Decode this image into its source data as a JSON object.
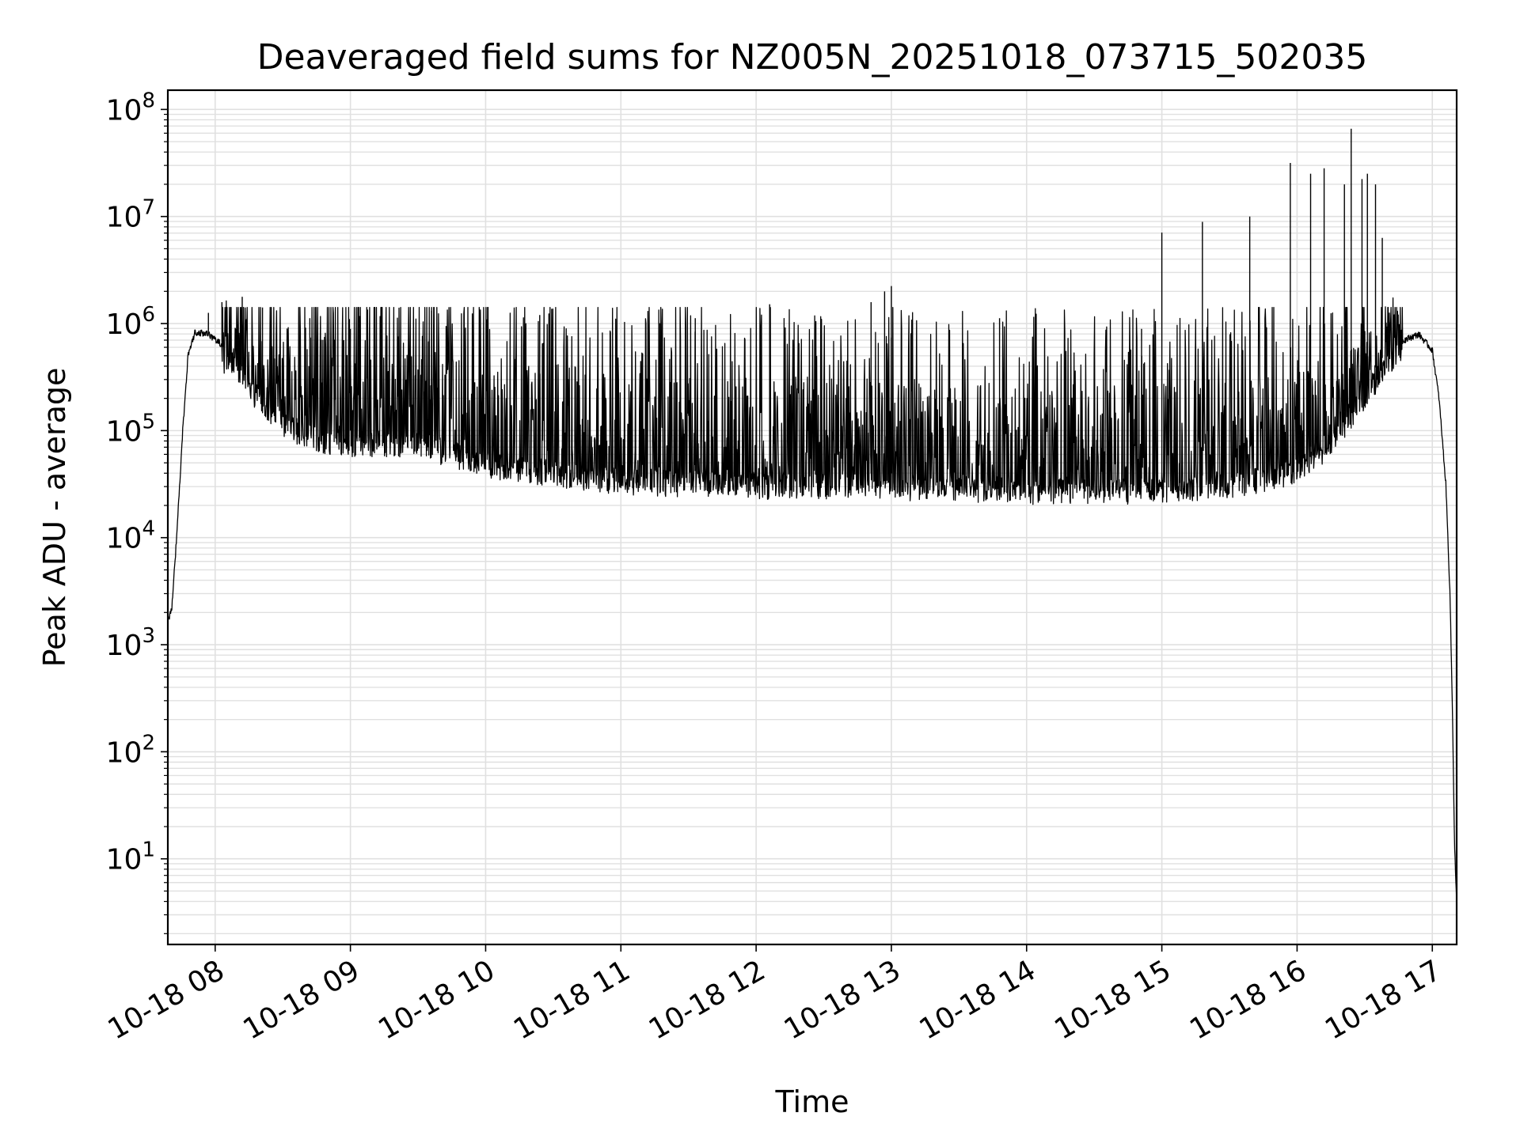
{
  "chart_data": {
    "type": "line",
    "title": "Deaveraged field sums for NZ005N_20251018_073715_502035",
    "xlabel": "Time",
    "ylabel": "Peak ADU - average",
    "yscale": "log",
    "ylim_log10": [
      0.2,
      8.18
    ],
    "xlim_hours": [
      7.65,
      17.18
    ],
    "grid": "major and minor, light gray",
    "line_color": "#000000",
    "grid_color": "#e0e0e0",
    "x_ticks": [
      {
        "hour": 8,
        "label": "10-18 08"
      },
      {
        "hour": 9,
        "label": "10-18 09"
      },
      {
        "hour": 10,
        "label": "10-18 10"
      },
      {
        "hour": 11,
        "label": "10-18 11"
      },
      {
        "hour": 12,
        "label": "10-18 12"
      },
      {
        "hour": 13,
        "label": "10-18 13"
      },
      {
        "hour": 14,
        "label": "10-18 14"
      },
      {
        "hour": 15,
        "label": "10-18 15"
      },
      {
        "hour": 16,
        "label": "10-18 16"
      },
      {
        "hour": 17,
        "label": "10-18 17"
      }
    ],
    "y_ticks": [
      {
        "exp": 1,
        "base": "10",
        "sup": "1"
      },
      {
        "exp": 2,
        "base": "10",
        "sup": "2"
      },
      {
        "exp": 3,
        "base": "10",
        "sup": "3"
      },
      {
        "exp": 4,
        "base": "10",
        "sup": "4"
      },
      {
        "exp": 5,
        "base": "10",
        "sup": "5"
      },
      {
        "exp": 6,
        "base": "10",
        "sup": "6"
      },
      {
        "exp": 7,
        "base": "10",
        "sup": "7"
      },
      {
        "exp": 8,
        "base": "10",
        "sup": "8"
      }
    ],
    "series": [
      {
        "name": "Peak ADU - average",
        "envelope_log10": [
          [
            7.65,
            3.2
          ],
          [
            7.68,
            3.35
          ],
          [
            7.72,
            4.1
          ],
          [
            7.76,
            5.0
          ],
          [
            7.8,
            5.7
          ],
          [
            7.85,
            5.92
          ],
          [
            7.95,
            5.9
          ],
          [
            8.1,
            5.75
          ],
          [
            8.3,
            5.45
          ],
          [
            8.5,
            5.2
          ],
          [
            8.7,
            5.05
          ],
          [
            9.0,
            5.0
          ],
          [
            9.5,
            5.0
          ],
          [
            10.0,
            4.8
          ],
          [
            11.0,
            4.65
          ],
          [
            12.0,
            4.6
          ],
          [
            13.0,
            4.6
          ],
          [
            14.0,
            4.55
          ],
          [
            15.0,
            4.55
          ],
          [
            15.5,
            4.6
          ],
          [
            16.0,
            4.75
          ],
          [
            16.25,
            5.0
          ],
          [
            16.5,
            5.45
          ],
          [
            16.7,
            5.8
          ],
          [
            16.9,
            5.9
          ],
          [
            17.0,
            5.75
          ],
          [
            17.05,
            5.3
          ],
          [
            17.1,
            4.5
          ],
          [
            17.13,
            3.5
          ],
          [
            17.15,
            2.3
          ],
          [
            17.165,
            1.1
          ],
          [
            17.18,
            0.58
          ]
        ],
        "spikes": [
          {
            "hour": 7.95,
            "log10": 6.1
          },
          {
            "hour": 8.05,
            "log10": 6.2
          },
          {
            "hour": 8.2,
            "log10": 6.25
          },
          {
            "hour": 8.35,
            "log10": 6.15
          },
          {
            "hour": 8.7,
            "log10": 6.05
          },
          {
            "hour": 9.0,
            "log10": 5.95
          },
          {
            "hour": 9.6,
            "log10": 6.12
          },
          {
            "hour": 10.4,
            "log10": 6.08
          },
          {
            "hour": 11.55,
            "log10": 6.05
          },
          {
            "hour": 12.1,
            "log10": 6.18
          },
          {
            "hour": 12.85,
            "log10": 6.2
          },
          {
            "hour": 12.95,
            "log10": 6.3
          },
          {
            "hour": 13.0,
            "log10": 6.35
          },
          {
            "hour": 13.8,
            "log10": 6.05
          },
          {
            "hour": 14.85,
            "log10": 5.95
          },
          {
            "hour": 15.0,
            "log10": 6.85
          },
          {
            "hour": 15.3,
            "log10": 6.95
          },
          {
            "hour": 15.65,
            "log10": 7.0
          },
          {
            "hour": 15.95,
            "log10": 7.5
          },
          {
            "hour": 16.1,
            "log10": 7.4
          },
          {
            "hour": 16.2,
            "log10": 7.45
          },
          {
            "hour": 16.35,
            "log10": 7.3
          },
          {
            "hour": 16.4,
            "log10": 7.82
          },
          {
            "hour": 16.48,
            "log10": 7.35
          },
          {
            "hour": 16.52,
            "log10": 7.4
          },
          {
            "hour": 16.58,
            "log10": 7.3
          },
          {
            "hour": 16.63,
            "log10": 6.8
          }
        ]
      }
    ]
  }
}
